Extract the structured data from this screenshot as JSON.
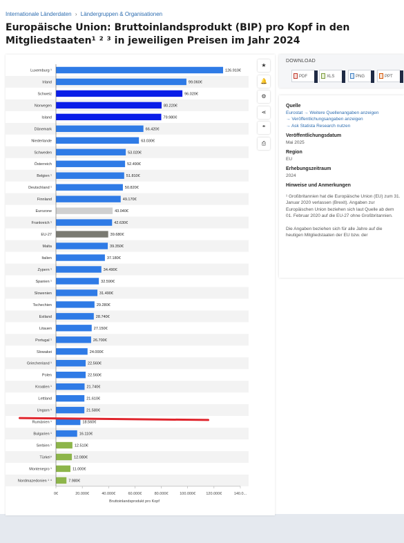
{
  "breadcrumb": [
    "Internationale Länderdaten",
    "›",
    "Ländergruppen & Organisationen"
  ],
  "title": "Europäische Union: Bruttoinlandsprodukt (BIP) pro Kopf in den Mitgliedstaaten¹ ² ³ in jeweiligen Preisen im Jahr 2024",
  "toolbar": {
    "icons": [
      "star-icon",
      "bell-icon",
      "gear-icon",
      "share-icon",
      "quote-icon",
      "print-icon"
    ],
    "glyphs": [
      "★",
      "🔔",
      "⚙",
      "⋖",
      "❝",
      "⎙"
    ]
  },
  "download": {
    "title": "DOWNLOAD",
    "buttons": [
      "PDF",
      "XLS",
      "PNG",
      "PPT"
    ]
  },
  "info": {
    "source_heading": "Quelle",
    "source_line": "Eurostat",
    "source_link": "Weitere Quellenangaben anzeigen",
    "publication_link": "Veröffentlichungsangaben anzeigen",
    "research_link": "Ask Statista Research nutzen",
    "release_heading": "Veröffentlichungsdatum",
    "release_value": "Mai 2025",
    "region_heading": "Region",
    "region_value": "EU",
    "period_heading": "Erhebungszeitraum",
    "period_value": "2024",
    "notes_heading": "Hinweise und Anmerkungen",
    "notes_p1": "¹ Großbritannien hat die Europäische Union (EU) zum 31. Januar 2020 verlassen (Brexit). Angaben zur Europäischen Union beziehen sich laut Quelle ab dem 01. Februar 2020 auf die EU-27 ohne Großbritannien.",
    "notes_p2": "Die Angaben beziehen sich für alle Jahre auf die heutigen Mitgliedstaaten der EU bzw. der"
  },
  "colors": {
    "eu_member": "#2f7be6",
    "non_eu": "#0a1ee8",
    "aggregate_eurozone": "#d0d0d0",
    "aggregate_eu27": "#7a7a72",
    "candidate": "#8db54a",
    "annotation_line": "#e0242c"
  },
  "chart_data": {
    "type": "bar",
    "orientation": "horizontal",
    "xlabel": "Bruttoinlandsprodukt pro Kopf",
    "xlim": [
      0,
      140000
    ],
    "xticks": [
      "0€",
      "20.000€",
      "40.000€",
      "60.000€",
      "80.000€",
      "100.000€",
      "120.000€",
      "140.0..."
    ],
    "grid": false,
    "categories": [
      "Luxemburg ¹",
      "Irland",
      "Schweiz",
      "Norwegen",
      "Island",
      "Dänemark",
      "Niederlande",
      "Schweden",
      "Österreich",
      "Belgien ¹",
      "Deutschland ¹",
      "Finnland",
      "Eurozone",
      "Frankreich ¹",
      "EU-27",
      "Malta",
      "Italien",
      "Zypern ¹",
      "Spanien ¹",
      "Slowenien",
      "Tschechien",
      "Estland",
      "Litauen",
      "Portugal ¹",
      "Slowakei",
      "Griechenland ¹",
      "Polen",
      "Kroatien ¹",
      "Lettland",
      "Ungarn ¹",
      "Rumänien ¹",
      "Bulgarien ¹",
      "Serbien ¹",
      "Türkei⁴",
      "Montenegro ¹",
      "Nordmazedonien ¹ ⁴"
    ],
    "values": [
      126910,
      99060,
      96020,
      80220,
      79980,
      66420,
      63030,
      53020,
      52490,
      51810,
      50820,
      49170,
      43040,
      42630,
      39680,
      39350,
      37180,
      34490,
      32590,
      31490,
      29280,
      28740,
      27150,
      26700,
      24000,
      22560,
      22560,
      21740,
      21610,
      21580,
      18560,
      16110,
      12510,
      12080,
      11000,
      7980
    ],
    "value_labels": [
      "126.910€",
      "99.060€",
      "96.020€",
      "80.220€",
      "79.980€",
      "66.420€",
      "63.030€",
      "53.020€",
      "52.490€",
      "51.810€",
      "50.820€",
      "49.170€",
      "43.040€",
      "42.630€",
      "39.680€",
      "39.350€",
      "37.180€",
      "34.490€",
      "32.590€",
      "31.490€",
      "29.280€",
      "28.740€",
      "27.150€",
      "26.700€",
      "24.000€",
      "22.560€",
      "22.560€",
      "21.740€",
      "21.610€",
      "21.580€",
      "18.560€",
      "16.110€",
      "12.510€",
      "12.080€",
      "11.000€",
      "7.980€"
    ],
    "bar_color_groups": [
      "eu_member",
      "eu_member",
      "non_eu",
      "non_eu",
      "non_eu",
      "eu_member",
      "eu_member",
      "eu_member",
      "eu_member",
      "eu_member",
      "eu_member",
      "eu_member",
      "aggregate_eurozone",
      "eu_member",
      "aggregate_eu27",
      "eu_member",
      "eu_member",
      "eu_member",
      "eu_member",
      "eu_member",
      "eu_member",
      "eu_member",
      "eu_member",
      "eu_member",
      "eu_member",
      "eu_member",
      "eu_member",
      "eu_member",
      "eu_member",
      "eu_member",
      "eu_member",
      "eu_member",
      "candidate",
      "candidate",
      "candidate",
      "candidate"
    ]
  }
}
